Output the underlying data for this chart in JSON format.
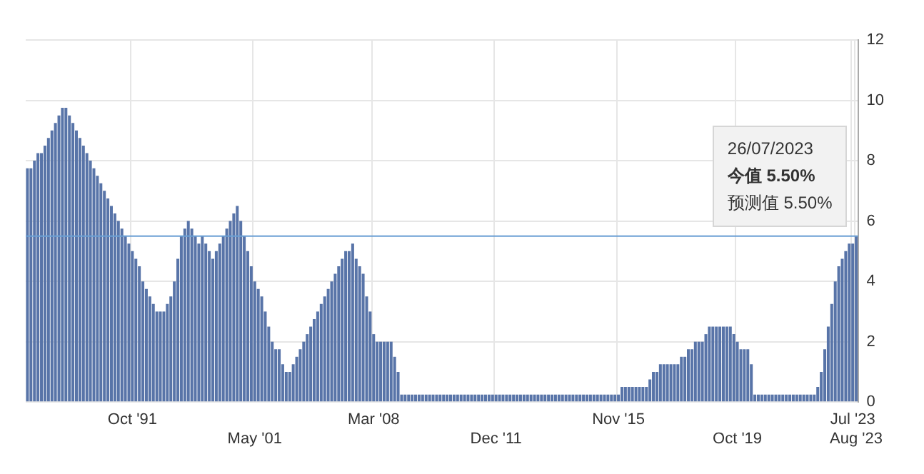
{
  "chart_data": {
    "type": "bar",
    "categories": [
      null,
      null,
      null,
      null,
      null,
      null,
      null,
      null,
      null,
      null,
      null,
      null,
      null,
      null,
      null,
      null,
      null,
      null,
      null,
      null,
      null,
      null,
      null,
      null,
      null,
      null,
      null,
      null,
      null,
      null,
      "Oct '91",
      null,
      null,
      null,
      null,
      null,
      null,
      null,
      null,
      null,
      null,
      null,
      null,
      null,
      null,
      null,
      null,
      null,
      null,
      null,
      null,
      null,
      null,
      null,
      null,
      null,
      null,
      null,
      null,
      null,
      null,
      null,
      null,
      null,
      null,
      "May '01",
      null,
      null,
      null,
      null,
      null,
      null,
      null,
      null,
      null,
      null,
      null,
      null,
      null,
      null,
      null,
      null,
      null,
      null,
      null,
      null,
      null,
      null,
      null,
      null,
      null,
      null,
      null,
      null,
      null,
      null,
      null,
      null,
      null,
      "Mar '08",
      null,
      null,
      null,
      null,
      null,
      null,
      null,
      null,
      null,
      null,
      null,
      null,
      null,
      null,
      null,
      null,
      null,
      null,
      null,
      null,
      null,
      null,
      null,
      null,
      null,
      null,
      null,
      null,
      null,
      null,
      null,
      null,
      null,
      null,
      "Dec '11",
      null,
      null,
      null,
      null,
      null,
      null,
      null,
      null,
      null,
      null,
      null,
      null,
      null,
      null,
      null,
      null,
      null,
      null,
      null,
      null,
      null,
      null,
      null,
      null,
      null,
      null,
      null,
      null,
      null,
      null,
      null,
      null,
      null,
      null,
      "Nov '15",
      null,
      null,
      null,
      null,
      null,
      null,
      null,
      null,
      null,
      null,
      null,
      null,
      null,
      null,
      null,
      null,
      null,
      null,
      null,
      null,
      null,
      null,
      null,
      null,
      null,
      null,
      null,
      null,
      null,
      null,
      null,
      null,
      null,
      "Oct '19",
      null,
      null,
      null,
      null,
      null,
      null,
      null,
      null,
      null,
      null,
      null,
      null,
      null,
      null,
      null,
      null,
      null,
      null,
      null,
      null,
      null,
      null,
      null,
      null,
      null,
      null,
      null,
      null,
      null,
      null,
      null,
      null,
      "Jul '23",
      "Aug '23"
    ],
    "values": [
      7.75,
      7.75,
      8.0,
      8.25,
      8.25,
      8.5,
      8.75,
      9.0,
      9.25,
      9.5,
      9.75,
      9.75,
      9.5,
      9.25,
      9.0,
      8.75,
      8.5,
      8.25,
      8.0,
      7.75,
      7.5,
      7.25,
      7.0,
      6.75,
      6.5,
      6.25,
      6.0,
      5.75,
      5.5,
      5.25,
      5.0,
      4.75,
      4.5,
      4.0,
      3.75,
      3.5,
      3.25,
      3.0,
      3.0,
      3.0,
      3.25,
      3.5,
      4.0,
      4.75,
      5.5,
      5.75,
      6.0,
      5.75,
      5.5,
      5.25,
      5.5,
      5.25,
      5.0,
      4.75,
      5.0,
      5.25,
      5.5,
      5.75,
      6.0,
      6.25,
      6.5,
      6.0,
      5.5,
      5.0,
      4.5,
      4.0,
      3.75,
      3.5,
      3.0,
      2.5,
      2.0,
      1.75,
      1.75,
      1.25,
      1.0,
      1.0,
      1.25,
      1.5,
      1.75,
      2.0,
      2.25,
      2.5,
      2.75,
      3.0,
      3.25,
      3.5,
      3.75,
      4.0,
      4.25,
      4.5,
      4.75,
      5.0,
      5.0,
      5.25,
      4.75,
      4.5,
      4.25,
      3.5,
      3.0,
      2.25,
      2.0,
      2.0,
      2.0,
      2.0,
      2.0,
      1.5,
      1.0,
      0.25,
      0.25,
      0.25,
      0.25,
      0.25,
      0.25,
      0.25,
      0.25,
      0.25,
      0.25,
      0.25,
      0.25,
      0.25,
      0.25,
      0.25,
      0.25,
      0.25,
      0.25,
      0.25,
      0.25,
      0.25,
      0.25,
      0.25,
      0.25,
      0.25,
      0.25,
      0.25,
      0.25,
      0.25,
      0.25,
      0.25,
      0.25,
      0.25,
      0.25,
      0.25,
      0.25,
      0.25,
      0.25,
      0.25,
      0.25,
      0.25,
      0.25,
      0.25,
      0.25,
      0.25,
      0.25,
      0.25,
      0.25,
      0.25,
      0.25,
      0.25,
      0.25,
      0.25,
      0.25,
      0.25,
      0.25,
      0.25,
      0.25,
      0.25,
      0.25,
      0.25,
      0.25,
      0.25,
      0.5,
      0.5,
      0.5,
      0.5,
      0.5,
      0.5,
      0.5,
      0.5,
      0.75,
      1.0,
      1.0,
      1.25,
      1.25,
      1.25,
      1.25,
      1.25,
      1.25,
      1.5,
      1.5,
      1.75,
      1.75,
      2.0,
      2.0,
      2.0,
      2.25,
      2.5,
      2.5,
      2.5,
      2.5,
      2.5,
      2.5,
      2.5,
      2.25,
      2.0,
      1.75,
      1.75,
      1.75,
      1.25,
      0.25,
      0.25,
      0.25,
      0.25,
      0.25,
      0.25,
      0.25,
      0.25,
      0.25,
      0.25,
      0.25,
      0.25,
      0.25,
      0.25,
      0.25,
      0.25,
      0.25,
      0.25,
      0.5,
      1.0,
      1.75,
      2.5,
      3.25,
      4.0,
      4.5,
      4.75,
      5.0,
      5.25,
      5.25,
      5.5
    ],
    "color": "#5874a8",
    "ylim": [
      0,
      12
    ],
    "yticks": [
      0,
      2,
      4,
      6,
      8,
      10,
      12
    ],
    "grid": true,
    "ref_lines": [
      {
        "axis": "y",
        "value": 5.5,
        "color": "#6a9fd4"
      }
    ],
    "annotations": [
      "26/07/2023",
      "今值 5.50%",
      "预测值 5.50%"
    ]
  }
}
